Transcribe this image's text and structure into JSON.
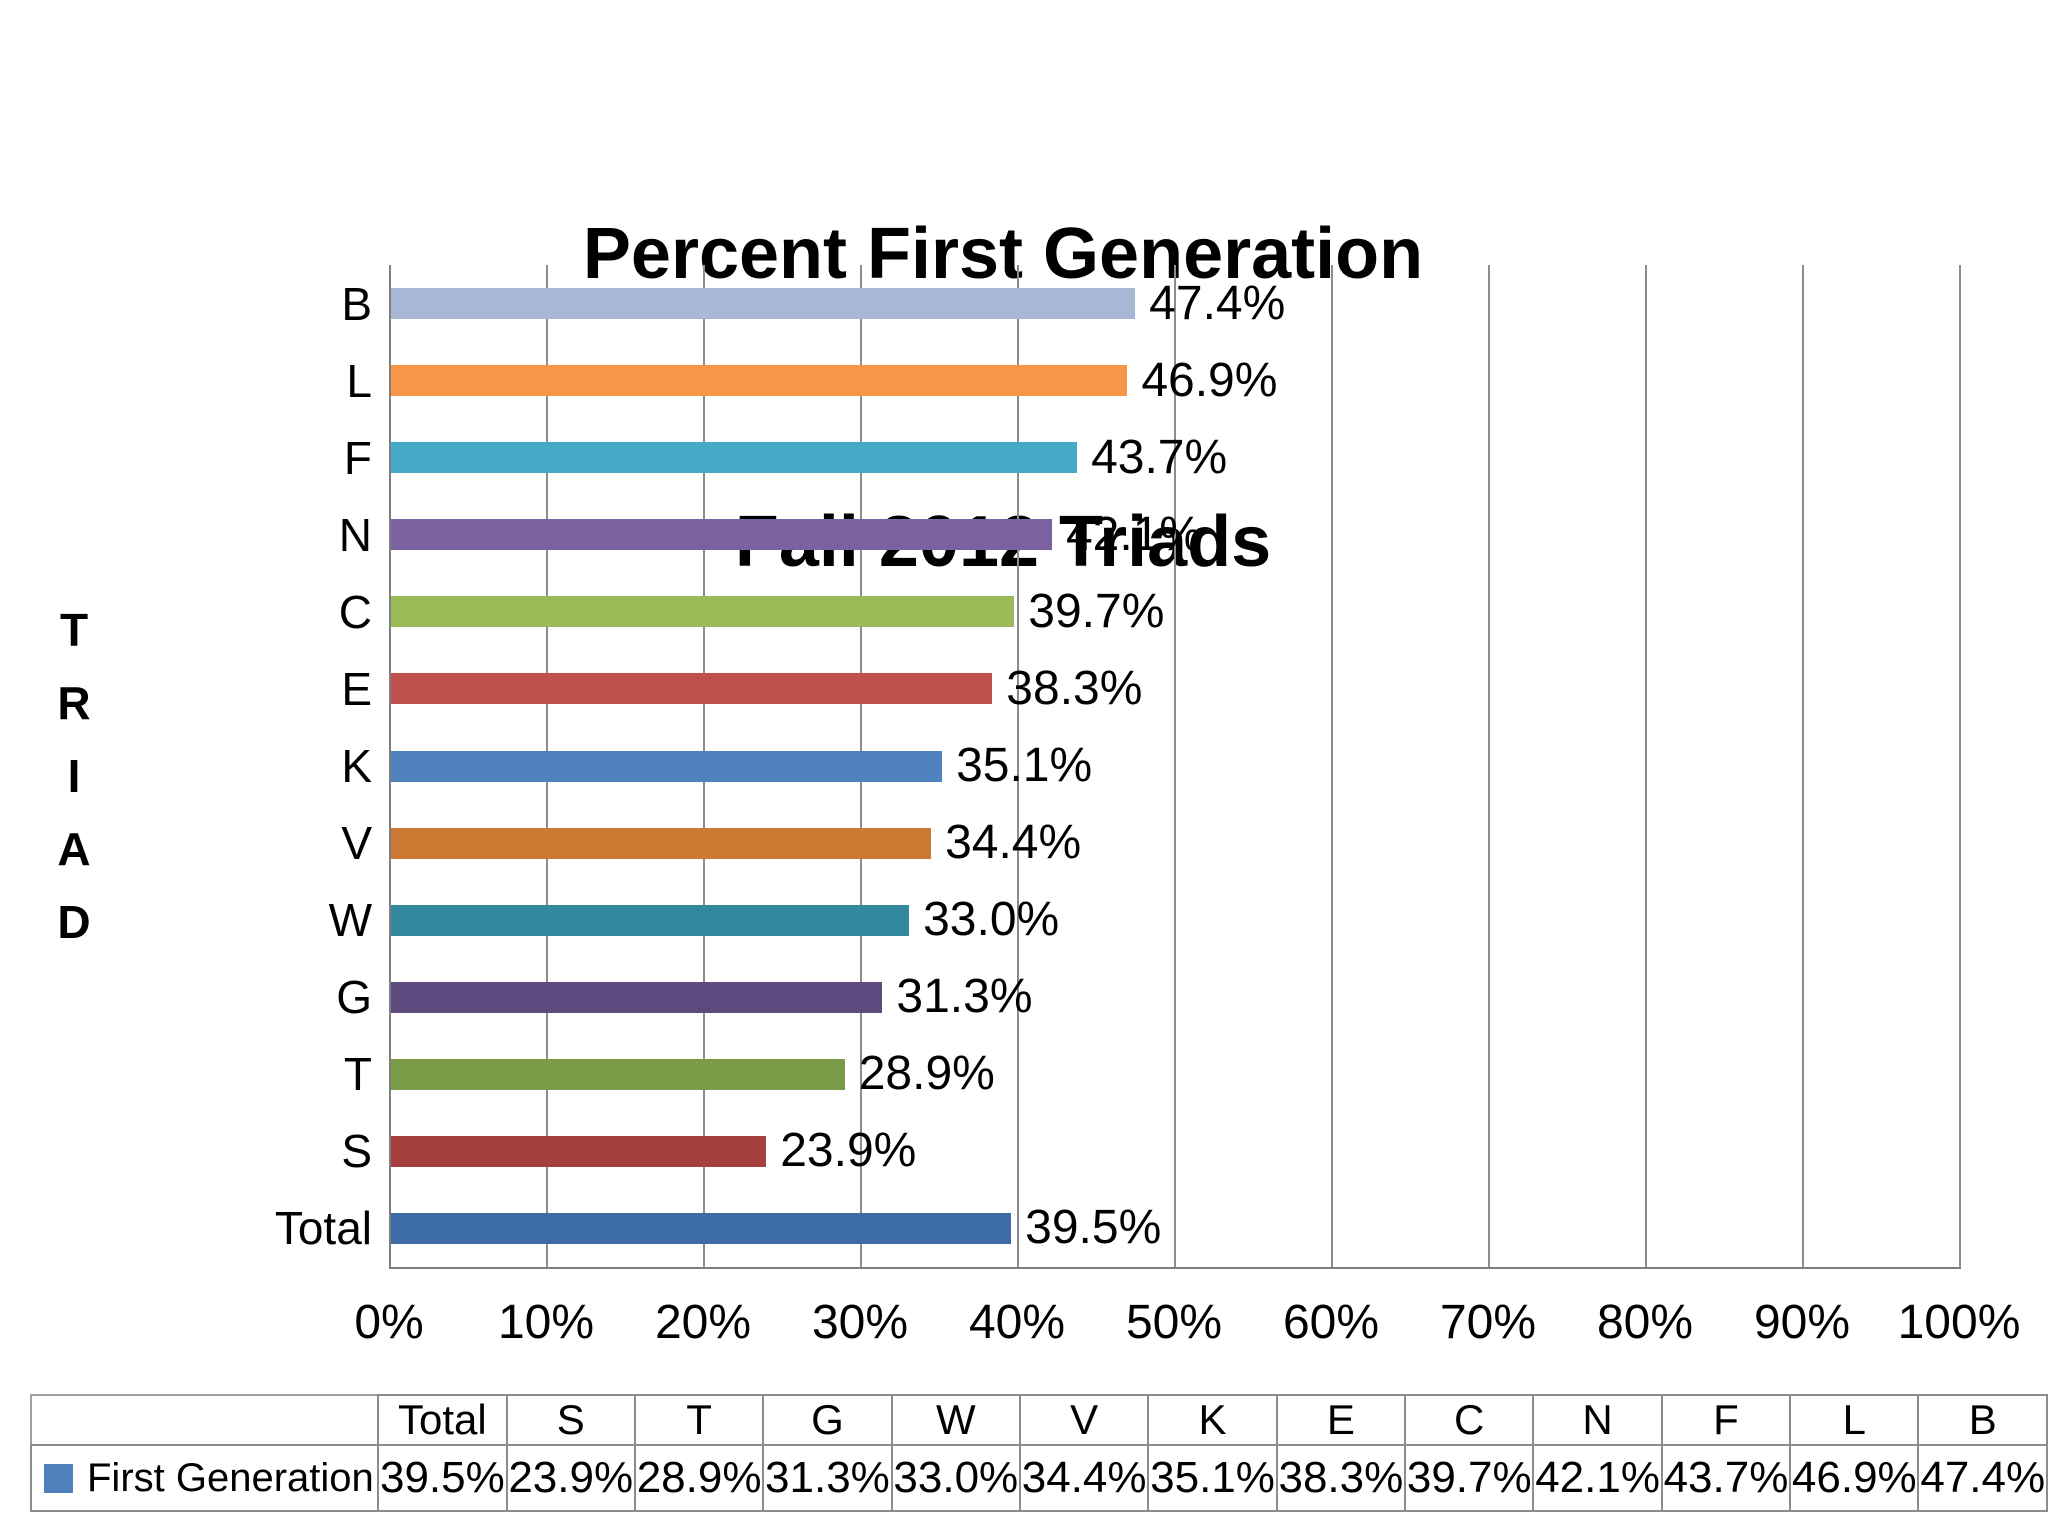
{
  "title": {
    "line1": "Percent First Generation",
    "line2": "Fall 2012 Triads"
  },
  "y_axis": {
    "title": "TRIAD",
    "letters": [
      "T",
      "R",
      "I",
      "A",
      "D"
    ]
  },
  "x_axis": {
    "tick_labels": [
      "0%",
      "10%",
      "20%",
      "30%",
      "40%",
      "50%",
      "60%",
      "70%",
      "80%",
      "90%",
      "100%"
    ],
    "min": 0,
    "max": 100
  },
  "chart_data": {
    "type": "bar",
    "orientation": "horizontal",
    "title": "Percent First Generation Fall 2012 Triads",
    "xlabel": "",
    "ylabel": "TRIAD",
    "xlim": [
      0,
      100
    ],
    "grid": true,
    "legend_position": "bottom-table",
    "categories": [
      "Total",
      "S",
      "T",
      "G",
      "W",
      "V",
      "K",
      "E",
      "C",
      "N",
      "F",
      "L",
      "B"
    ],
    "series": [
      {
        "name": "First Generation",
        "values": [
          39.5,
          23.9,
          28.9,
          31.3,
          33.0,
          34.4,
          35.1,
          38.3,
          39.7,
          42.1,
          43.7,
          46.9,
          47.4
        ]
      }
    ],
    "display_order_top_to_bottom": [
      "B",
      "L",
      "F",
      "N",
      "C",
      "E",
      "K",
      "V",
      "W",
      "G",
      "T",
      "S",
      "Total"
    ],
    "data_labels": {
      "Total": "39.5%",
      "S": "23.9%",
      "T": "28.9%",
      "G": "31.3%",
      "W": "33.0%",
      "V": "34.4%",
      "K": "35.1%",
      "E": "38.3%",
      "C": "39.7%",
      "N": "42.1%",
      "F": "43.7%",
      "L": "46.9%",
      "B": "47.4%"
    },
    "bar_colors": {
      "Total": "#3d6ba5",
      "S": "#a5403f",
      "T": "#7a9c48",
      "G": "#5e4a7e",
      "W": "#33889e",
      "V": "#cc7a33",
      "K": "#4e81be",
      "E": "#c0504d",
      "C": "#9bbb59",
      "N": "#7a62a0",
      "F": "#45aac5",
      "L": "#f79646",
      "B": "#a8b7d6"
    }
  },
  "table": {
    "legend": {
      "label": "First Generation",
      "swatch_color": "#4f81bd"
    },
    "columns": [
      "Total",
      "S",
      "T",
      "G",
      "W",
      "V",
      "K",
      "E",
      "C",
      "N",
      "F",
      "L",
      "B"
    ],
    "values": [
      "39.5%",
      "23.9%",
      "28.9%",
      "31.3%",
      "33.0%",
      "34.4%",
      "35.1%",
      "38.3%",
      "39.7%",
      "42.1%",
      "43.7%",
      "46.9%",
      "47.4%"
    ]
  }
}
